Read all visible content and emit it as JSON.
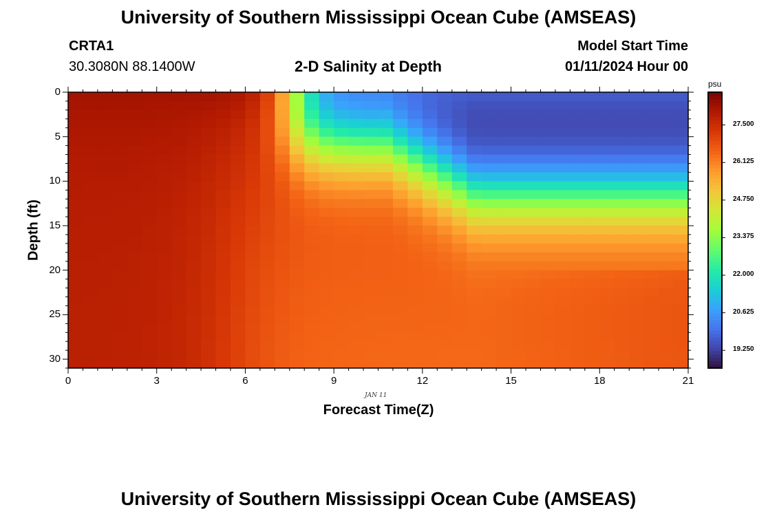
{
  "header": {
    "title": "University of Southern Mississippi Ocean Cube (AMSEAS)",
    "station_id": "CRTA1",
    "coords": "30.3080N  88.1400W",
    "plot_title": "2-D Salinity at Depth",
    "model_start_label": "Model Start Time",
    "model_start_value": "01/11/2024 Hour 00"
  },
  "footer": {
    "title": "University of Southern Mississippi Ocean Cube (AMSEAS)"
  },
  "chart_data": {
    "type": "heatmap",
    "title": "2-D Salinity at Depth",
    "xlabel": "Forecast Time(Z)",
    "ylabel": "Depth (ft)",
    "date_label": "JAN 11",
    "xlim": [
      0,
      21
    ],
    "ylim": [
      0,
      31
    ],
    "x_ticks": [
      0,
      3,
      6,
      9,
      12,
      15,
      18,
      21
    ],
    "y_ticks": [
      0,
      5,
      10,
      15,
      20,
      25,
      30
    ],
    "x_tick_labels": [
      "0",
      "3",
      "6",
      "9",
      "12",
      "15",
      "18",
      "21"
    ],
    "y_tick_labels": [
      "0",
      "5",
      "10",
      "15",
      "20",
      "25",
      "30"
    ],
    "colorbar": {
      "unit": "psu",
      "min": 18.6,
      "max": 28.7,
      "ticks": [
        19.25,
        20.625,
        22.0,
        23.375,
        24.75,
        26.125,
        27.5
      ],
      "tick_labels": [
        "19.250",
        "20.625",
        "22.000",
        "23.375",
        "24.750",
        "26.125",
        "27.500"
      ]
    },
    "colors": {
      "stops": [
        "#30123b",
        "#4145ab",
        "#4675ed",
        "#39a2fc",
        "#1bcfd4",
        "#24eca6",
        "#61fc6c",
        "#a4fc3b",
        "#d1e834",
        "#f3c63a",
        "#fe9b2d",
        "#f36315",
        "#d93806",
        "#b11901",
        "#7a0403"
      ]
    },
    "model": {
      "deep_base": 26.4,
      "deep_decay": 9.5,
      "nearshore": 28.15,
      "front_center": 7.6,
      "front_width": 0.45,
      "surface_drop": 8.6,
      "halocline_start": 10.8,
      "halocline_end": 13.8,
      "halocline_depth_start": 6.0,
      "halocline_depth_end": 11.5,
      "halocline_thickness": 2.6
    }
  }
}
